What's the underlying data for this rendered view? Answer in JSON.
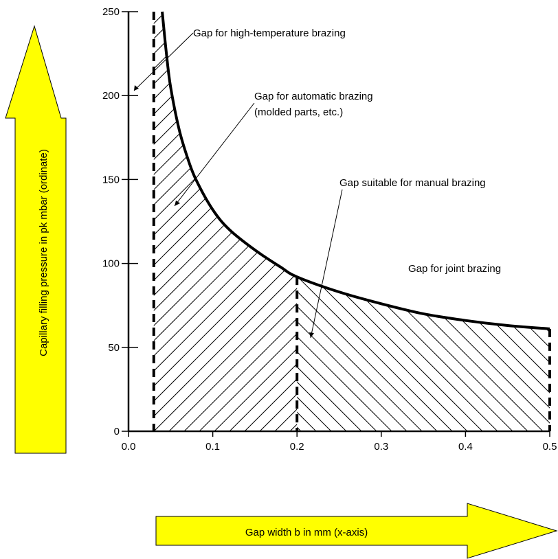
{
  "chart_data": {
    "type": "line",
    "xlabel": "Gap width b in mm (x-axis)",
    "ylabel": "Capillary filling pressure in pk mbar (ordinate)",
    "xlim": [
      0,
      0.5
    ],
    "ylim": [
      0,
      250
    ],
    "x_ticks": [
      "0.0",
      "0.1",
      "0.2",
      "0.3",
      "0.4",
      "0.5"
    ],
    "y_ticks": [
      "0",
      "50",
      "100",
      "150",
      "200",
      "250"
    ],
    "curve": {
      "x": [
        0.04,
        0.045,
        0.05,
        0.06,
        0.07,
        0.08,
        0.1,
        0.12,
        0.15,
        0.18,
        0.2,
        0.25,
        0.3,
        0.35,
        0.4,
        0.45,
        0.5
      ],
      "y": [
        250,
        225,
        205,
        180,
        163,
        150,
        132,
        120,
        108,
        98,
        92,
        83,
        76,
        70,
        66,
        63,
        61
      ]
    },
    "boundaries_x": [
      0.03,
      0.2,
      0.5
    ],
    "hatch": "diagonal",
    "annotations": [
      {
        "text": "Gap for high-temperature brazing",
        "target": [
          0.01,
          205
        ]
      },
      {
        "text": "Gap for automatic brazing",
        "text2": "(molded parts, etc.)",
        "target": [
          0.055,
          140
        ]
      },
      {
        "text": "Gap suitable for manual brazing",
        "target": [
          0.22,
          60
        ]
      },
      {
        "text": "Gap for joint brazing"
      }
    ],
    "colors": {
      "arrow_fill": "#ffff00",
      "line": "#000000"
    },
    "grid": false
  }
}
